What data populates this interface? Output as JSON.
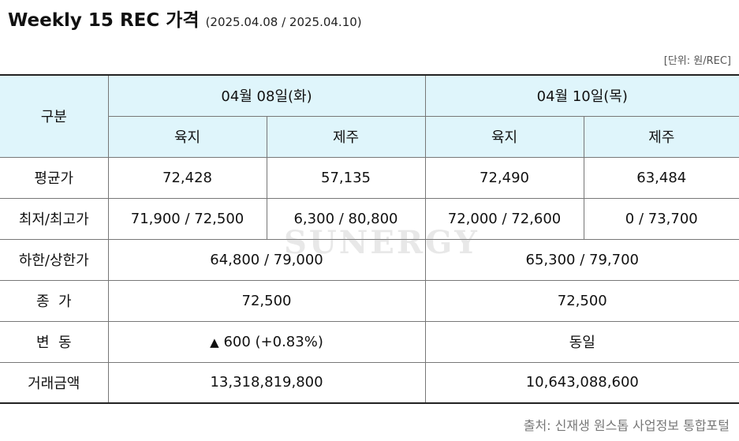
{
  "title": "Weekly 15 REC 가격",
  "subtitle": "(2025.04.08 / 2025.04.10)",
  "unit_note": "[단위: 원/REC]",
  "watermark": "SUNERGY",
  "header": {
    "category": "구분",
    "date1": "04월 08일(화)",
    "date2": "04월 10일(목)",
    "region_land": "육지",
    "region_jeju": "제주"
  },
  "rows": {
    "average": {
      "label": "평균가",
      "d1_land": "72,428",
      "d1_jeju": "57,135",
      "d2_land": "72,490",
      "d2_jeju": "63,484"
    },
    "minmax": {
      "label": "최저/최고가",
      "d1_land": "71,900 / 72,500",
      "d1_jeju": "6,300 / 80,800",
      "d2_land": "72,000 / 72,600",
      "d2_jeju": "0 / 73,700"
    },
    "limits": {
      "label": "하한/상한가",
      "d1": "64,800 / 79,000",
      "d2": "65,300 / 79,700"
    },
    "close": {
      "label": "종  가",
      "d1": "72,500",
      "d2": "72,500"
    },
    "change": {
      "label": "변  동",
      "d1_arrow": "▲",
      "d1": "600 (+0.83%)",
      "d2": "동일"
    },
    "volume": {
      "label": "거래금액",
      "d1": "13,318,819,800",
      "d2": "10,643,088,600"
    }
  },
  "source": "출처: 신재생 원스톱 사업정보 통합포털",
  "colors": {
    "header_bg": "#dff5fb",
    "up_red": "#e0191e"
  }
}
